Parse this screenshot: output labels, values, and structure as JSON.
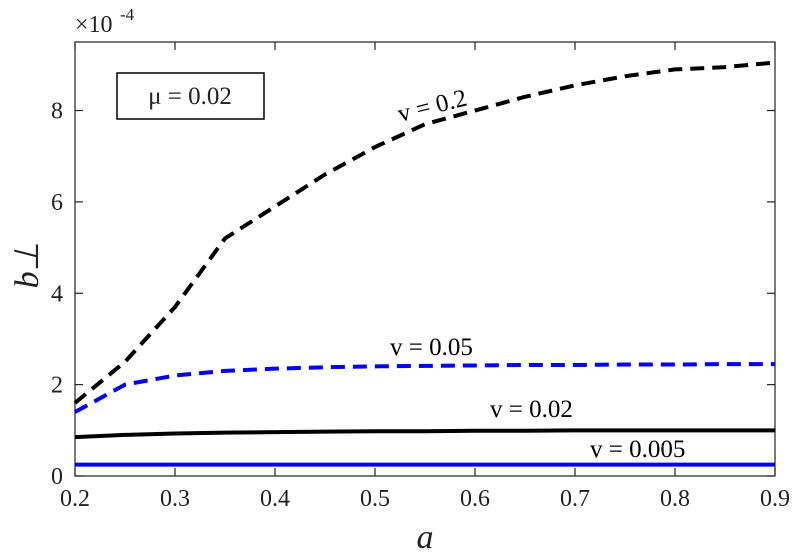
{
  "chart_data": {
    "type": "line",
    "xlabel": "a",
    "ylabel": "b⊥",
    "y_scale_label": {
      "base": "×10",
      "exponent": "-4"
    },
    "annotation": "μ = 0.02",
    "x": [
      0.2,
      0.25,
      0.3,
      0.35,
      0.4,
      0.45,
      0.5,
      0.55,
      0.6,
      0.65,
      0.7,
      0.75,
      0.8,
      0.85,
      0.9
    ],
    "series": [
      {
        "name": "v = 0.2",
        "color": "#000000",
        "dashed": true,
        "values": [
          1.6,
          2.5,
          3.7,
          5.2,
          5.9,
          6.6,
          7.2,
          7.7,
          8.0,
          8.3,
          8.55,
          8.75,
          8.9,
          8.95,
          9.05
        ]
      },
      {
        "name": "v = 0.05",
        "color": "#0000ff",
        "dashed": true,
        "values": [
          1.4,
          2.0,
          2.2,
          2.3,
          2.35,
          2.38,
          2.4,
          2.41,
          2.42,
          2.43,
          2.43,
          2.44,
          2.44,
          2.45,
          2.45
        ]
      },
      {
        "name": "v = 0.02",
        "color": "#000000",
        "dashed": false,
        "values": [
          0.85,
          0.9,
          0.93,
          0.95,
          0.96,
          0.97,
          0.98,
          0.98,
          0.99,
          0.99,
          1.0,
          1.0,
          1.0,
          1.0,
          1.0
        ]
      },
      {
        "name": "v = 0.005",
        "color": "#0000ff",
        "dashed": false,
        "values": [
          0.25,
          0.25,
          0.25,
          0.25,
          0.25,
          0.25,
          0.25,
          0.25,
          0.25,
          0.25,
          0.25,
          0.25,
          0.25,
          0.25,
          0.25
        ]
      }
    ],
    "xlim": [
      0.2,
      0.9
    ],
    "xticks": [
      0.2,
      0.3,
      0.4,
      0.5,
      0.6,
      0.7,
      0.8,
      0.9
    ],
    "ylim": [
      0,
      9.5
    ],
    "yticks": [
      0,
      2,
      4,
      6,
      8
    ],
    "grid": false
  }
}
